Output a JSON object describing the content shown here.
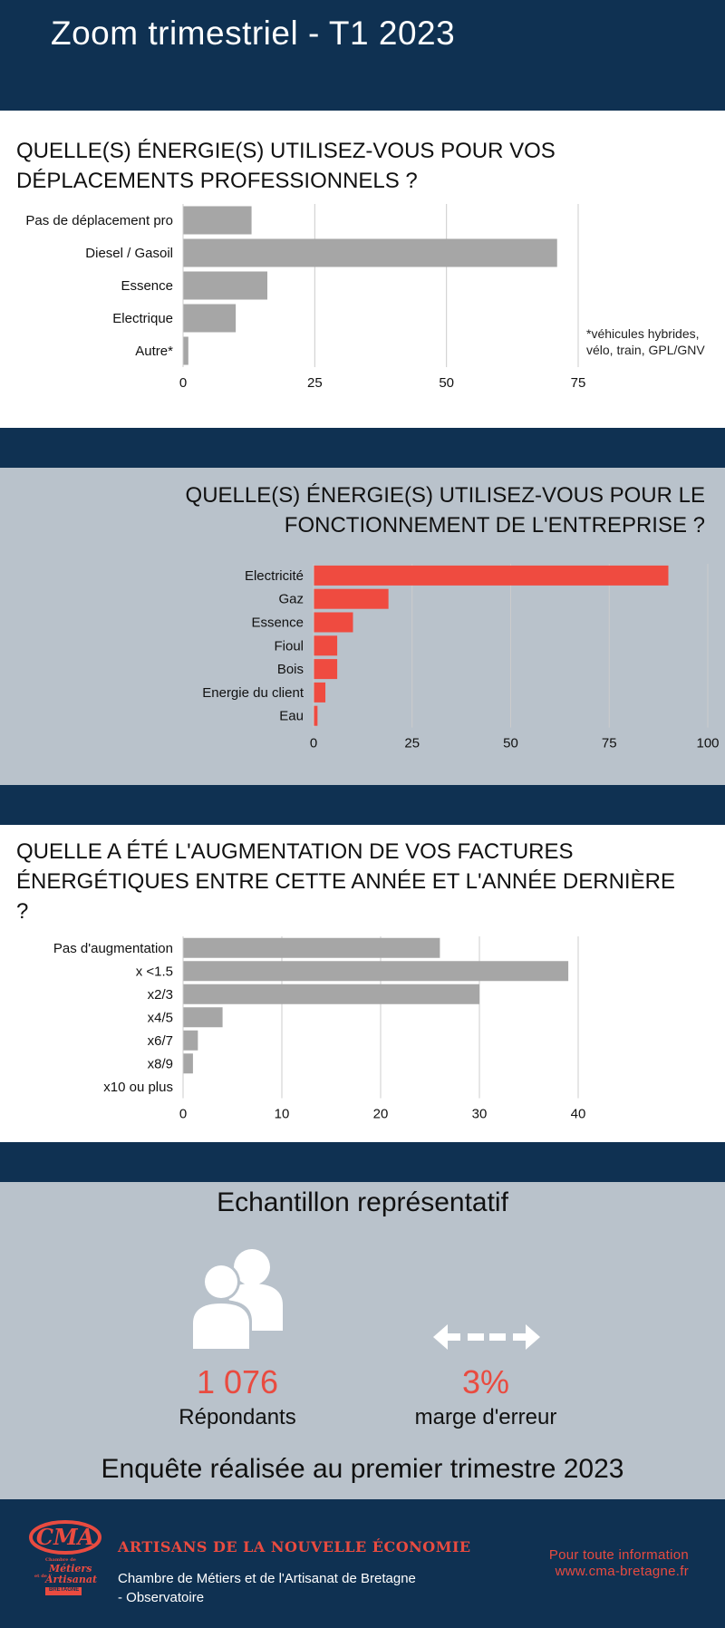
{
  "header": {
    "title": "Zoom trimestriel - T1 2023"
  },
  "q1": {
    "title_lines": [
      "QUELLE(S) ÉNERGIE(S) UTILISEZ-VOUS POUR VOS",
      "DÉPLACEMENTS PROFESSIONNELS ?"
    ],
    "note_lines": [
      "*véhicules hybrides,",
      "vélo, train, GPL/GNV"
    ]
  },
  "q2": {
    "title_lines": [
      "QUELLE(S) ÉNERGIE(S) UTILISEZ-VOUS POUR LE",
      "FONCTIONNEMENT DE L'ENTREPRISE ?"
    ]
  },
  "q3": {
    "title_lines": [
      "QUELLE A ÉTÉ L'AUGMENTATION DE VOS FACTURES",
      "ÉNERGÉTIQUES ENTRE CETTE ANNÉE ET L'ANNÉE DERNIÈRE",
      "?"
    ]
  },
  "chart_data": [
    {
      "type": "bar",
      "orientation": "horizontal",
      "title": "QUELLE(S) ÉNERGIE(S) UTILISEZ-VOUS POUR VOS DÉPLACEMENTS PROFESSIONNELS ?",
      "categories": [
        "Pas de déplacement pro",
        "Diesel / Gasoil",
        "Essence",
        "Electrique",
        "Autre*"
      ],
      "values": [
        13,
        71,
        16,
        10,
        1
      ],
      "xlim": [
        0,
        75
      ],
      "xticks": [
        0,
        25,
        50,
        75
      ],
      "grid": true,
      "color": "#a6a6a6"
    },
    {
      "type": "bar",
      "orientation": "horizontal",
      "title": "QUELLE(S) ÉNERGIE(S) UTILISEZ-VOUS POUR LE FONCTIONNEMENT DE L'ENTREPRISE ?",
      "categories": [
        "Electricité",
        "Gaz",
        "Essence",
        "Fioul",
        "Bois",
        "Energie du client",
        "Eau"
      ],
      "values": [
        90,
        19,
        10,
        6,
        6,
        3,
        1
      ],
      "xlim": [
        0,
        100
      ],
      "xticks": [
        0,
        25,
        50,
        75,
        100
      ],
      "grid": true,
      "color": "#ef4b40"
    },
    {
      "type": "bar",
      "orientation": "horizontal",
      "title": "QUELLE A ÉTÉ L'AUGMENTATION DE VOS FACTURES ÉNERGÉTIQUES ENTRE CETTE ANNÉE ET L'ANNÉE DERNIÈRE ?",
      "categories": [
        "Pas d'augmentation",
        "x <1.5",
        "x2/3",
        "x4/5",
        "x6/7",
        "x8/9",
        "x10 ou plus"
      ],
      "values": [
        26,
        39,
        30,
        4,
        1.5,
        1,
        0
      ],
      "xlim": [
        0,
        40
      ],
      "xticks": [
        0,
        10,
        20,
        30,
        40
      ],
      "grid": true,
      "color": "#a6a6a6"
    }
  ],
  "sample": {
    "title": "Echantillon représentatif",
    "respondents_value": "1 076",
    "respondents_label": "Répondants",
    "margin_value": "3%",
    "margin_label": "marge d'erreur",
    "survey_note": "Enquête réalisée au premier trimestre 2023",
    "icons": [
      "people-icon",
      "double-arrow-icon"
    ]
  },
  "footer": {
    "heading": "ARTISANS DE LA NOUVELLE ÉCONOMIE",
    "sub": "Chambre de Métiers et de l'Artisanat de Bretagne - Observatoire",
    "info_line1": "Pour toute information",
    "info_line2": "www.cma-bretagne.fr",
    "logo": {
      "mark": "CMA",
      "line1": "Chambre de",
      "line2": "Métiers",
      "line3": "et de l'",
      "line4": "Artisanat",
      "line5": "BRETAGNE"
    }
  },
  "colors": {
    "navy": "#0f3152",
    "panel_gray": "#b9c2cb",
    "accent_red": "#e94b40",
    "bar_gray": "#a6a6a6"
  }
}
